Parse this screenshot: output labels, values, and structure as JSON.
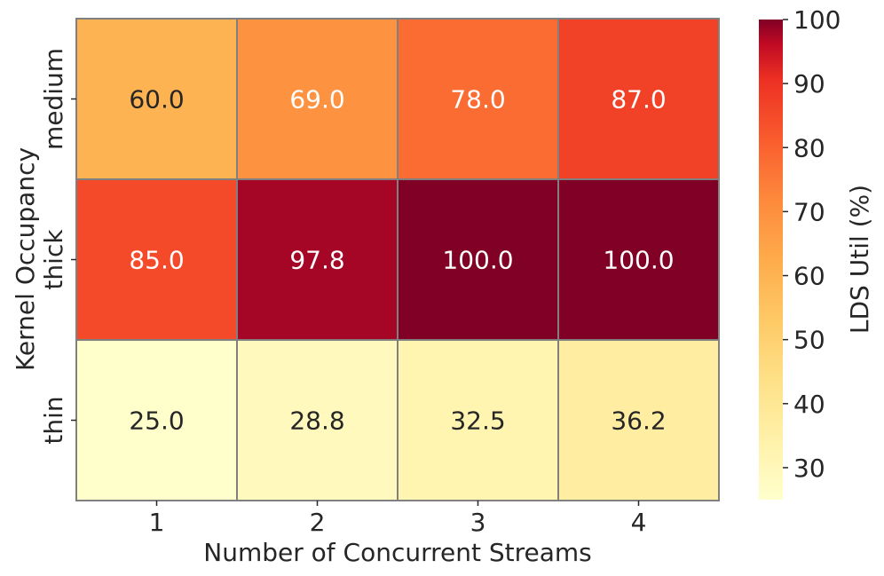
{
  "chart_data": {
    "type": "heatmap",
    "title": "",
    "xlabel": "Number of Concurrent Streams",
    "ylabel": "Kernel Occupancy",
    "x_categories": [
      "1",
      "2",
      "3",
      "4"
    ],
    "y_categories": [
      "medium",
      "thick",
      "thin"
    ],
    "values": [
      [
        60.0,
        69.0,
        78.0,
        87.0
      ],
      [
        85.0,
        97.8,
        100.0,
        100.0
      ],
      [
        25.0,
        28.8,
        32.5,
        36.2
      ]
    ],
    "cell_labels": [
      [
        "60.0",
        "69.0",
        "78.0",
        "87.0"
      ],
      [
        "85.0",
        "97.8",
        "100.0",
        "100.0"
      ],
      [
        "25.0",
        "28.8",
        "32.5",
        "36.2"
      ]
    ],
    "colorbar": {
      "label": "LDS Util (%)",
      "range": [
        25,
        100
      ],
      "ticks": [
        "30",
        "40",
        "50",
        "60",
        "70",
        "80",
        "90",
        "100"
      ],
      "colormap": "YlOrRd"
    },
    "cell_border_color": "#808080",
    "annotation_dark_color": "#262626",
    "annotation_light_color": "#ffffff"
  }
}
